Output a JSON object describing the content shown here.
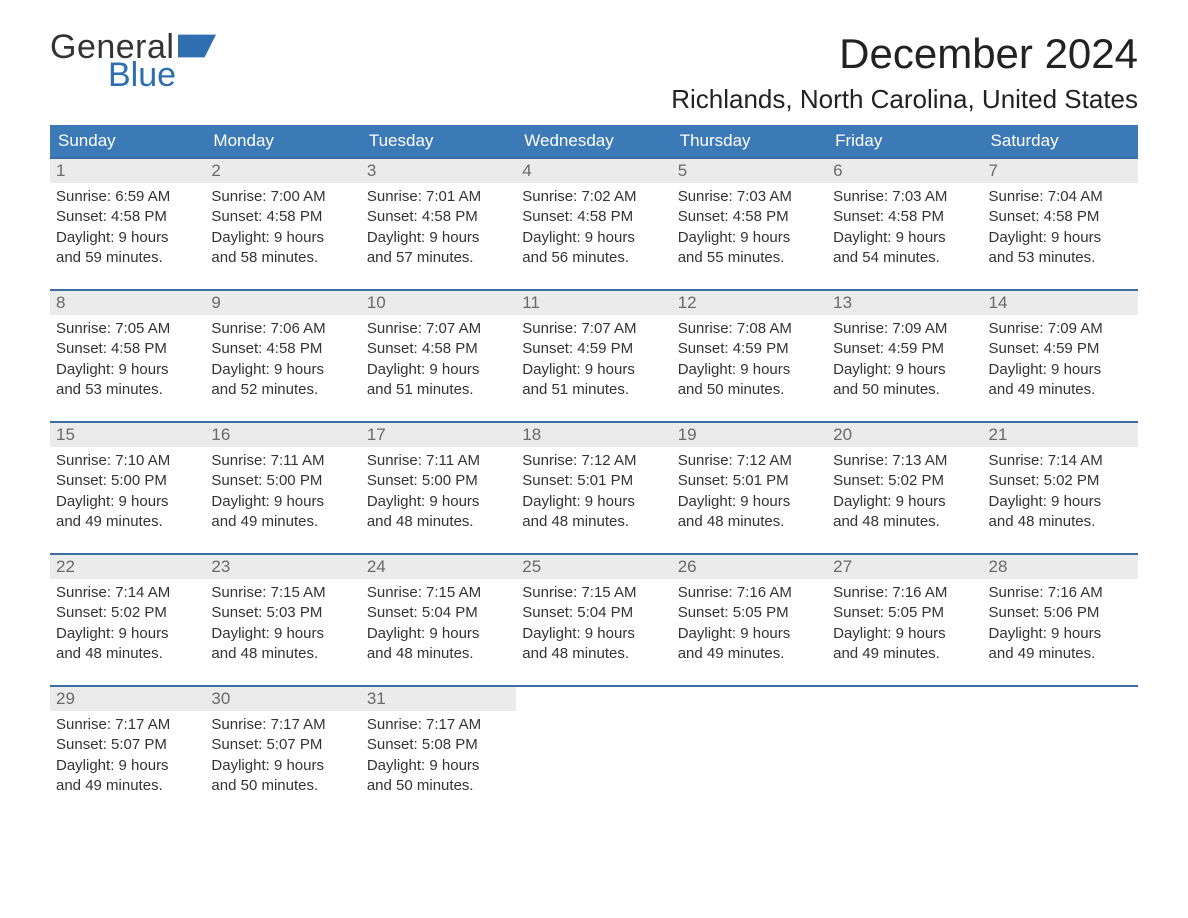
{
  "brand": {
    "word1": "General",
    "word2": "Blue",
    "flag_color": "#2f6fb0"
  },
  "title": "December 2024",
  "location": "Richlands, North Carolina, United States",
  "colors": {
    "header_bg": "#3b79b7",
    "header_text": "#ffffff",
    "week_rule": "#3b6ea5",
    "daynum_bg": "#ebebeb",
    "daynum_text": "#6a6a6a",
    "body_text": "#333333",
    "page_bg": "#ffffff"
  },
  "week_start": "Sunday",
  "dows": [
    "Sunday",
    "Monday",
    "Tuesday",
    "Wednesday",
    "Thursday",
    "Friday",
    "Saturday"
  ],
  "first_day_dow_index": 0,
  "days": [
    {
      "n": 1,
      "sunrise": "6:59 AM",
      "sunset": "4:58 PM",
      "dl_h": 9,
      "dl_m": 59
    },
    {
      "n": 2,
      "sunrise": "7:00 AM",
      "sunset": "4:58 PM",
      "dl_h": 9,
      "dl_m": 58
    },
    {
      "n": 3,
      "sunrise": "7:01 AM",
      "sunset": "4:58 PM",
      "dl_h": 9,
      "dl_m": 57
    },
    {
      "n": 4,
      "sunrise": "7:02 AM",
      "sunset": "4:58 PM",
      "dl_h": 9,
      "dl_m": 56
    },
    {
      "n": 5,
      "sunrise": "7:03 AM",
      "sunset": "4:58 PM",
      "dl_h": 9,
      "dl_m": 55
    },
    {
      "n": 6,
      "sunrise": "7:03 AM",
      "sunset": "4:58 PM",
      "dl_h": 9,
      "dl_m": 54
    },
    {
      "n": 7,
      "sunrise": "7:04 AM",
      "sunset": "4:58 PM",
      "dl_h": 9,
      "dl_m": 53
    },
    {
      "n": 8,
      "sunrise": "7:05 AM",
      "sunset": "4:58 PM",
      "dl_h": 9,
      "dl_m": 53
    },
    {
      "n": 9,
      "sunrise": "7:06 AM",
      "sunset": "4:58 PM",
      "dl_h": 9,
      "dl_m": 52
    },
    {
      "n": 10,
      "sunrise": "7:07 AM",
      "sunset": "4:58 PM",
      "dl_h": 9,
      "dl_m": 51
    },
    {
      "n": 11,
      "sunrise": "7:07 AM",
      "sunset": "4:59 PM",
      "dl_h": 9,
      "dl_m": 51
    },
    {
      "n": 12,
      "sunrise": "7:08 AM",
      "sunset": "4:59 PM",
      "dl_h": 9,
      "dl_m": 50
    },
    {
      "n": 13,
      "sunrise": "7:09 AM",
      "sunset": "4:59 PM",
      "dl_h": 9,
      "dl_m": 50
    },
    {
      "n": 14,
      "sunrise": "7:09 AM",
      "sunset": "4:59 PM",
      "dl_h": 9,
      "dl_m": 49
    },
    {
      "n": 15,
      "sunrise": "7:10 AM",
      "sunset": "5:00 PM",
      "dl_h": 9,
      "dl_m": 49
    },
    {
      "n": 16,
      "sunrise": "7:11 AM",
      "sunset": "5:00 PM",
      "dl_h": 9,
      "dl_m": 49
    },
    {
      "n": 17,
      "sunrise": "7:11 AM",
      "sunset": "5:00 PM",
      "dl_h": 9,
      "dl_m": 48
    },
    {
      "n": 18,
      "sunrise": "7:12 AM",
      "sunset": "5:01 PM",
      "dl_h": 9,
      "dl_m": 48
    },
    {
      "n": 19,
      "sunrise": "7:12 AM",
      "sunset": "5:01 PM",
      "dl_h": 9,
      "dl_m": 48
    },
    {
      "n": 20,
      "sunrise": "7:13 AM",
      "sunset": "5:02 PM",
      "dl_h": 9,
      "dl_m": 48
    },
    {
      "n": 21,
      "sunrise": "7:14 AM",
      "sunset": "5:02 PM",
      "dl_h": 9,
      "dl_m": 48
    },
    {
      "n": 22,
      "sunrise": "7:14 AM",
      "sunset": "5:02 PM",
      "dl_h": 9,
      "dl_m": 48
    },
    {
      "n": 23,
      "sunrise": "7:15 AM",
      "sunset": "5:03 PM",
      "dl_h": 9,
      "dl_m": 48
    },
    {
      "n": 24,
      "sunrise": "7:15 AM",
      "sunset": "5:04 PM",
      "dl_h": 9,
      "dl_m": 48
    },
    {
      "n": 25,
      "sunrise": "7:15 AM",
      "sunset": "5:04 PM",
      "dl_h": 9,
      "dl_m": 48
    },
    {
      "n": 26,
      "sunrise": "7:16 AM",
      "sunset": "5:05 PM",
      "dl_h": 9,
      "dl_m": 49
    },
    {
      "n": 27,
      "sunrise": "7:16 AM",
      "sunset": "5:05 PM",
      "dl_h": 9,
      "dl_m": 49
    },
    {
      "n": 28,
      "sunrise": "7:16 AM",
      "sunset": "5:06 PM",
      "dl_h": 9,
      "dl_m": 49
    },
    {
      "n": 29,
      "sunrise": "7:17 AM",
      "sunset": "5:07 PM",
      "dl_h": 9,
      "dl_m": 49
    },
    {
      "n": 30,
      "sunrise": "7:17 AM",
      "sunset": "5:07 PM",
      "dl_h": 9,
      "dl_m": 50
    },
    {
      "n": 31,
      "sunrise": "7:17 AM",
      "sunset": "5:08 PM",
      "dl_h": 9,
      "dl_m": 50
    }
  ],
  "labels": {
    "sunrise": "Sunrise:",
    "sunset": "Sunset:",
    "daylight_prefix": "Daylight:",
    "hours_word": "hours",
    "and_word": "and",
    "minutes_word": "minutes."
  },
  "typography": {
    "title_fontsize": 42,
    "location_fontsize": 26,
    "dow_fontsize": 17,
    "daynum_fontsize": 17,
    "body_fontsize": 15
  }
}
